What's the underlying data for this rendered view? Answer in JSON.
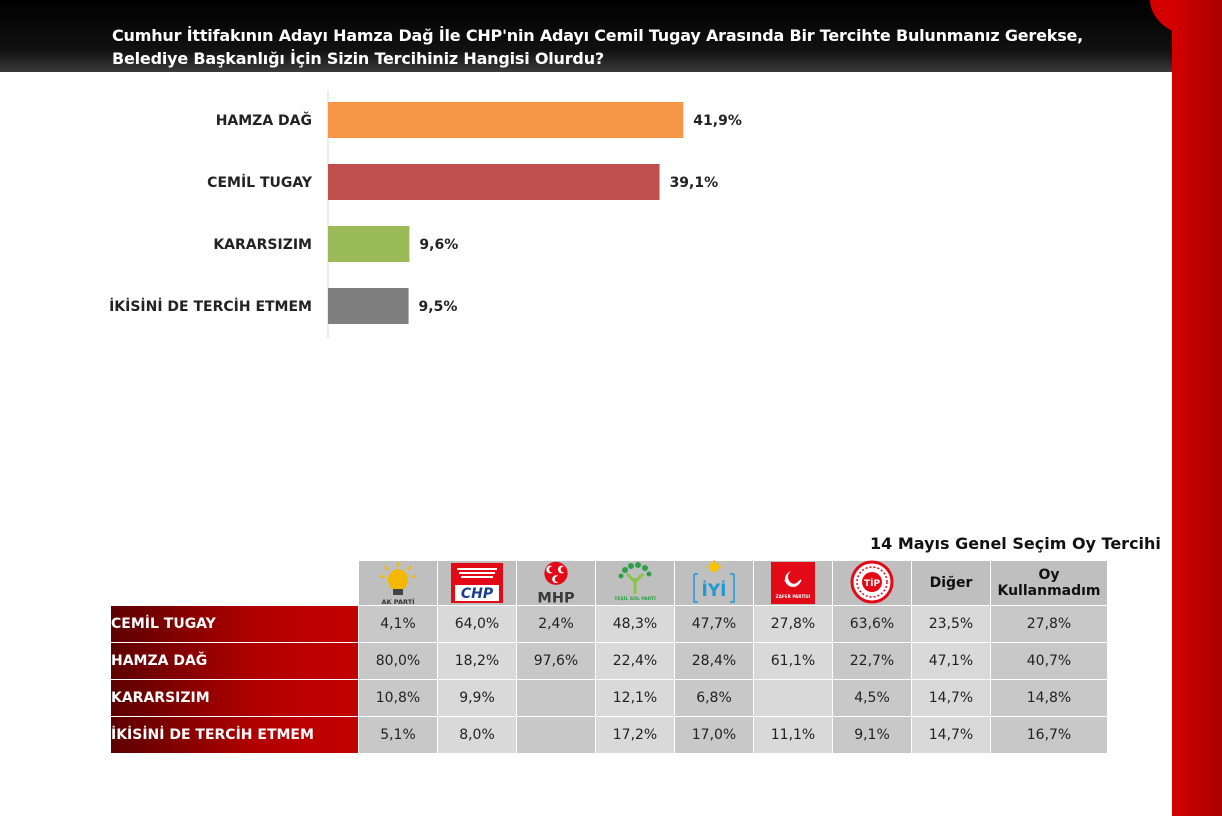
{
  "header": {
    "title": "Cumhur İttifakının Adayı Hamza Dağ İle CHP'nin Adayı Cemil Tugay Arasında Bir Tercihte Bulunmanız Gerekse, Belediye Başkanlığı İçin Sizin Tercihiniz Hangisi Olurdu?"
  },
  "chart_data": {
    "type": "bar",
    "orientation": "horizontal",
    "categories": [
      "HAMZA DAĞ",
      "CEMİL TUGAY",
      "KARARSIZIM",
      "İKİSİNİ DE TERCİH ETMEM"
    ],
    "values": [
      41.9,
      39.1,
      9.6,
      9.5
    ],
    "value_labels": [
      "41,9%",
      "39,1%",
      "9,6%",
      "9,5%"
    ],
    "colors": [
      "#F79646",
      "#C0504D",
      "#9BBB59",
      "#7F7F7F"
    ],
    "xlim": [
      0,
      50
    ],
    "grid": false
  },
  "table": {
    "title": "14 Mayıs Genel Seçim Oy Tercihi",
    "party_logos": [
      {
        "icon": "ak-parti-logo",
        "text": "AK PARTİ"
      },
      {
        "icon": "chp-logo",
        "text": "CHP"
      },
      {
        "icon": "mhp-logo",
        "text": "MHP"
      },
      {
        "icon": "yesil-sol-parti-logo",
        "text": "YEŞİL SOL PARTİ"
      },
      {
        "icon": "iyi-parti-logo",
        "text": "İYİ"
      },
      {
        "icon": "zafer-partisi-logo",
        "text": "ZAFER PARTİSİ"
      },
      {
        "icon": "tip-logo",
        "text": "TİP"
      }
    ],
    "text_headers": [
      "Diğer",
      "Oy Kullanmadım"
    ],
    "rows": [
      {
        "label": "CEMİL TUGAY",
        "values": [
          "4,1%",
          "64,0%",
          "2,4%",
          "48,3%",
          "47,7%",
          "27,8%",
          "63,6%",
          "23,5%",
          "27,8%"
        ]
      },
      {
        "label": "HAMZA DAĞ",
        "values": [
          "80,0%",
          "18,2%",
          "97,6%",
          "22,4%",
          "28,4%",
          "61,1%",
          "22,7%",
          "47,1%",
          "40,7%"
        ]
      },
      {
        "label": "KARARSIZIM",
        "values": [
          "10,8%",
          "9,9%",
          "",
          "12,1%",
          "6,8%",
          "",
          "4,5%",
          "14,7%",
          "14,8%"
        ]
      },
      {
        "label": "İKİSİNİ DE TERCİH ETMEM",
        "values": [
          "5,1%",
          "8,0%",
          "",
          "17,2%",
          "17,0%",
          "11,1%",
          "9,1%",
          "14,7%",
          "16,7%"
        ]
      }
    ]
  }
}
